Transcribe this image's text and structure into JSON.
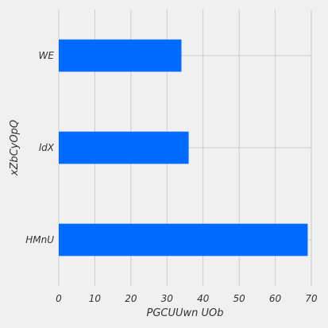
{
  "chart_data": {
    "type": "bar",
    "orientation": "horizontal",
    "categories": [
      "WE",
      "ldX",
      "HMnU"
    ],
    "values": [
      34,
      36,
      69
    ],
    "xlabel": "PGCUUwn UOb",
    "ylabel": "xZbCyOpQ",
    "xlim": [
      0,
      70
    ],
    "xticks": [
      "0",
      "10",
      "20",
      "30",
      "40",
      "50",
      "60",
      "70"
    ],
    "grid": true,
    "bar_color": "#006bff",
    "background_color": "#f0f0f0",
    "grid_color": "#cbcbcb"
  }
}
